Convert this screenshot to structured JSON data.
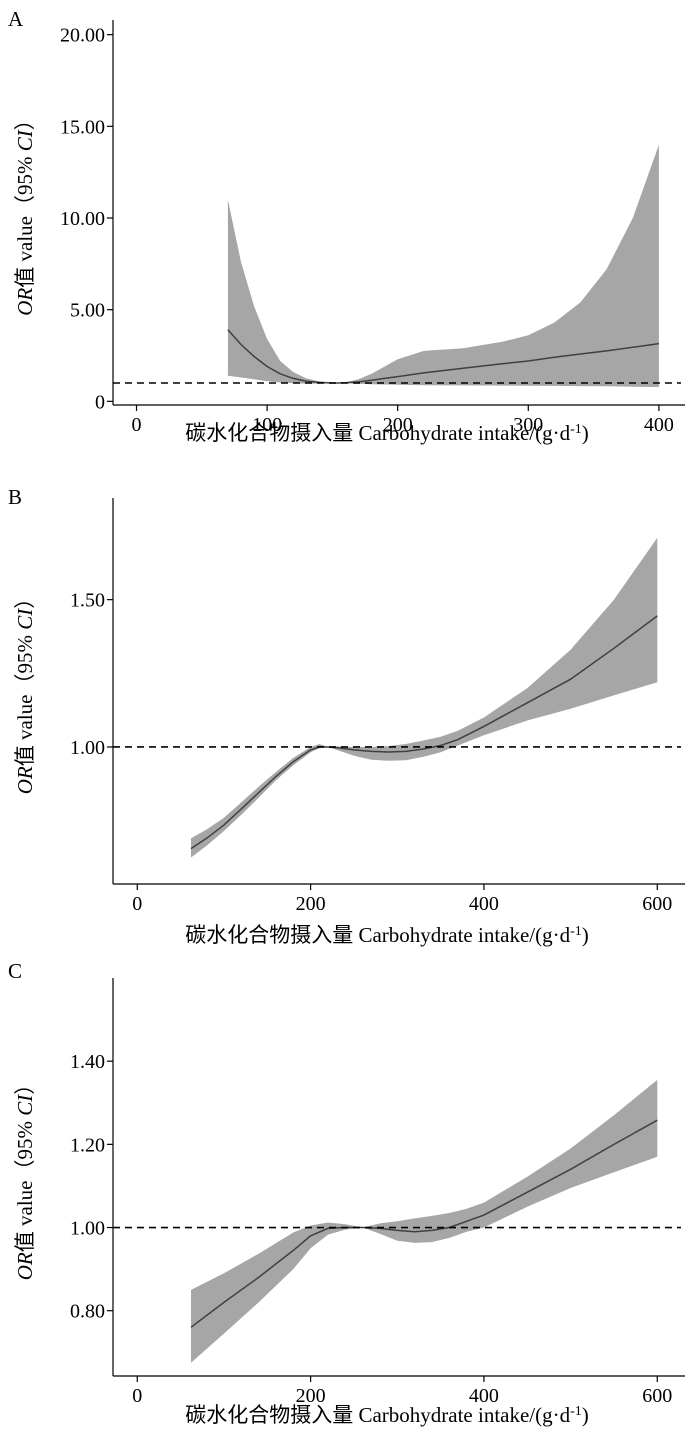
{
  "chart_data": [
    {
      "type": "line",
      "panel": "A",
      "xlabel": "碳水化合物摄入量 Carbohydrate intake/(g·d",
      "xlabel_sup": "-1",
      "xlabel_end": ")",
      "ylabel_italic": "OR",
      "ylabel_mid": "值 value（95% ",
      "ylabel_italic2": "CI",
      "ylabel_end": "）",
      "xlim": [
        -18,
        420
      ],
      "ylim": [
        -0.2,
        20.8
      ],
      "xticks": [
        0,
        100,
        200,
        300,
        400
      ],
      "xtick_labels": [
        "0",
        "100",
        "200",
        "300",
        "400"
      ],
      "yticks": [
        0,
        5,
        10,
        15,
        20
      ],
      "ytick_labels": [
        "0",
        "5.00",
        "10.00",
        "15.00",
        "20.00"
      ],
      "reference_line": 1.0,
      "series": [
        {
          "role": "estimate",
          "x": [
            70,
            80,
            90,
            100,
            110,
            120,
            130,
            140,
            150,
            155,
            160,
            170,
            180,
            190,
            200,
            220,
            250,
            280,
            300,
            320,
            340,
            360,
            380,
            400
          ],
          "y": [
            3.9,
            3.1,
            2.45,
            1.9,
            1.5,
            1.25,
            1.1,
            1.03,
            1.0,
            1.0,
            1.01,
            1.06,
            1.15,
            1.25,
            1.35,
            1.55,
            1.8,
            2.05,
            2.2,
            2.4,
            2.58,
            2.75,
            2.95,
            3.15
          ]
        },
        {
          "role": "ci_lower",
          "x": [
            70,
            80,
            90,
            100,
            110,
            120,
            130,
            140,
            150,
            155,
            160,
            170,
            180,
            190,
            200,
            220,
            250,
            280,
            300,
            320,
            340,
            360,
            380,
            400
          ],
          "y": [
            1.4,
            1.3,
            1.2,
            1.1,
            1.03,
            0.99,
            0.97,
            0.97,
            0.99,
            1.0,
            0.99,
            0.96,
            0.93,
            0.92,
            0.9,
            0.88,
            0.87,
            0.86,
            0.85,
            0.84,
            0.83,
            0.82,
            0.8,
            0.78
          ]
        },
        {
          "role": "ci_upper",
          "x": [
            70,
            80,
            90,
            100,
            110,
            120,
            130,
            140,
            150,
            155,
            160,
            170,
            180,
            190,
            200,
            220,
            250,
            280,
            300,
            320,
            340,
            360,
            380,
            400
          ],
          "y": [
            11.0,
            7.6,
            5.2,
            3.4,
            2.2,
            1.6,
            1.25,
            1.08,
            1.01,
            1.0,
            1.03,
            1.2,
            1.5,
            1.9,
            2.3,
            2.75,
            2.9,
            3.25,
            3.6,
            4.3,
            5.4,
            7.2,
            10.0,
            14.0
          ]
        }
      ]
    },
    {
      "type": "line",
      "panel": "B",
      "xlabel": "碳水化合物摄入量 Carbohydrate intake/(g·d",
      "xlabel_sup": "-1",
      "xlabel_end": ")",
      "ylabel_italic": "OR",
      "ylabel_mid": "值 value（95% ",
      "ylabel_italic2": "CI",
      "ylabel_end": "）",
      "xlim": [
        -28,
        632
      ],
      "ylim": [
        0.535,
        1.845
      ],
      "xticks": [
        0,
        200,
        400,
        600
      ],
      "xtick_labels": [
        "0",
        "200",
        "400",
        "600"
      ],
      "yticks": [
        1.0,
        1.5
      ],
      "ytick_labels": [
        "1.00",
        "1.50"
      ],
      "reference_line": 1.0,
      "series": [
        {
          "role": "estimate",
          "x": [
            62,
            80,
            100,
            120,
            140,
            160,
            180,
            200,
            210,
            220,
            230,
            250,
            270,
            290,
            310,
            330,
            350,
            370,
            400,
            450,
            500,
            550,
            600
          ],
          "y": [
            0.655,
            0.69,
            0.735,
            0.79,
            0.845,
            0.9,
            0.95,
            0.99,
            1.0,
            1.0,
            0.998,
            0.99,
            0.985,
            0.983,
            0.985,
            0.993,
            1.005,
            1.025,
            1.07,
            1.15,
            1.23,
            1.335,
            1.445
          ]
        },
        {
          "role": "ci_lower",
          "x": [
            62,
            80,
            100,
            120,
            140,
            160,
            180,
            200,
            210,
            220,
            230,
            250,
            270,
            290,
            310,
            330,
            350,
            370,
            400,
            450,
            500,
            550,
            600
          ],
          "y": [
            0.625,
            0.665,
            0.715,
            0.77,
            0.828,
            0.887,
            0.938,
            0.982,
            0.996,
            1.0,
            0.99,
            0.97,
            0.957,
            0.953,
            0.955,
            0.967,
            0.982,
            1.005,
            1.04,
            1.09,
            1.13,
            1.175,
            1.22
          ]
        },
        {
          "role": "ci_upper",
          "x": [
            62,
            80,
            100,
            120,
            140,
            160,
            180,
            200,
            210,
            220,
            230,
            250,
            270,
            290,
            310,
            330,
            350,
            370,
            400,
            450,
            500,
            550,
            600
          ],
          "y": [
            0.69,
            0.72,
            0.76,
            0.812,
            0.865,
            0.915,
            0.963,
            1.0,
            1.01,
            1.0,
            1.002,
            1.0,
            1.0,
            1.003,
            1.01,
            1.022,
            1.035,
            1.055,
            1.1,
            1.2,
            1.33,
            1.5,
            1.71
          ]
        }
      ]
    },
    {
      "type": "line",
      "panel": "C",
      "xlabel": "碳水化合物摄入量 Carbohydrate intake/(g·d",
      "xlabel_sup": "-1",
      "xlabel_end": ")",
      "ylabel_italic": "OR",
      "ylabel_mid": "值 value（95% ",
      "ylabel_italic2": "CI",
      "ylabel_end": "）",
      "xlim": [
        -28,
        632
      ],
      "ylim": [
        0.643,
        1.6
      ],
      "xticks": [
        0,
        200,
        400,
        600
      ],
      "xtick_labels": [
        "0",
        "200",
        "400",
        "600"
      ],
      "yticks": [
        0.8,
        1.0,
        1.2,
        1.4
      ],
      "ytick_labels": [
        "0.80",
        "1.00",
        "1.20",
        "1.40"
      ],
      "reference_line": 1.0,
      "series": [
        {
          "role": "estimate",
          "x": [
            62,
            100,
            140,
            180,
            200,
            220,
            240,
            260,
            280,
            300,
            320,
            340,
            360,
            380,
            400,
            450,
            500,
            550,
            600
          ],
          "y": [
            0.76,
            0.82,
            0.88,
            0.945,
            0.98,
            0.998,
            1.0,
            1.0,
            0.998,
            0.993,
            0.99,
            0.993,
            1.0,
            1.015,
            1.03,
            1.085,
            1.14,
            1.2,
            1.258
          ]
        },
        {
          "role": "ci_lower",
          "x": [
            62,
            100,
            140,
            180,
            200,
            220,
            240,
            260,
            280,
            300,
            320,
            340,
            360,
            380,
            400,
            450,
            500,
            550,
            600
          ],
          "y": [
            0.675,
            0.745,
            0.82,
            0.9,
            0.95,
            0.983,
            0.995,
            1.0,
            0.985,
            0.968,
            0.963,
            0.965,
            0.975,
            0.99,
            1.0,
            1.05,
            1.095,
            1.133,
            1.17
          ]
        },
        {
          "role": "ci_upper",
          "x": [
            62,
            100,
            140,
            180,
            200,
            220,
            240,
            260,
            280,
            300,
            320,
            340,
            360,
            380,
            400,
            450,
            500,
            550,
            600
          ],
          "y": [
            0.85,
            0.89,
            0.937,
            0.988,
            1.005,
            1.012,
            1.008,
            1.0,
            1.01,
            1.015,
            1.022,
            1.028,
            1.035,
            1.045,
            1.06,
            1.122,
            1.19,
            1.27,
            1.355
          ]
        }
      ]
    }
  ]
}
